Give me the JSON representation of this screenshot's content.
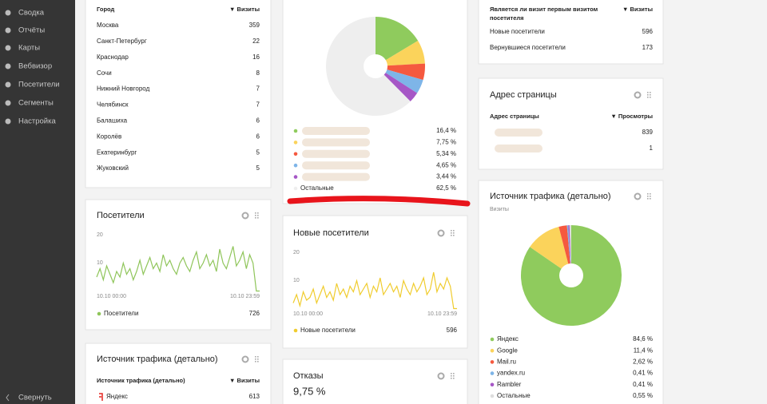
{
  "sidebar": {
    "items": [
      "Сводка",
      "Отчёты",
      "Карты",
      "Вебвизор",
      "Посетители",
      "Сегменты",
      "Настройка"
    ],
    "collapse": "Свернуть"
  },
  "cities": {
    "header": [
      "Город",
      "▼ Визиты"
    ],
    "rows": [
      [
        "Москва",
        359
      ],
      [
        "Санкт-Петербург",
        22
      ],
      [
        "Краснодар",
        16
      ],
      [
        "Сочи",
        8
      ],
      [
        "Нижний Новгород",
        7
      ],
      [
        "Челябинск",
        7
      ],
      [
        "Балашиха",
        6
      ],
      [
        "Королёв",
        6
      ],
      [
        "Екатеринбург",
        5
      ],
      [
        "Жуковский",
        5
      ]
    ]
  },
  "visitors": {
    "title": "Посетители",
    "chart": {
      "type": "line",
      "color": "#8fc55a",
      "ylim": [
        0,
        20
      ],
      "yticks": [
        10,
        20
      ],
      "x_labels": [
        "10.10 00:00",
        "10.10 23:59"
      ],
      "values": [
        6,
        9,
        5,
        10,
        7,
        4,
        8,
        6,
        11,
        7,
        9,
        5,
        8,
        12,
        7,
        10,
        13,
        9,
        11,
        8,
        14,
        10,
        12,
        9,
        7,
        11,
        13,
        10,
        8,
        12,
        15,
        9,
        11,
        14,
        10,
        12,
        8,
        16,
        11,
        9,
        13,
        17,
        10,
        12,
        15,
        9,
        14,
        11,
        1,
        1
      ]
    },
    "legend": {
      "name": "Посетители",
      "value": 726
    }
  },
  "traffic_left": {
    "title": "Источник трафика (детально)",
    "header": [
      "Источник трафика (детально)",
      "▼ Визиты"
    ],
    "rows": [
      [
        "Яндекс",
        613
      ]
    ]
  },
  "pie_top": {
    "chart": {
      "type": "pie",
      "categories": [
        null,
        null,
        null,
        null,
        null,
        "Остальные"
      ],
      "values": [
        16.4,
        7.75,
        5.34,
        4.65,
        3.44,
        62.5
      ],
      "value_labels": [
        "16,4 %",
        "7,75 %",
        "5,34 %",
        "4,65 %",
        "3,44 %",
        "62,5 %"
      ],
      "colors": [
        "#8fcb5d",
        "#fbd35b",
        "#f5593f",
        "#7eb5e8",
        "#a657c6",
        "#eeeeee"
      ]
    }
  },
  "new_visitors": {
    "title": "Новые посетители",
    "chart": {
      "type": "line",
      "color": "#f0cc2e",
      "ylim": [
        0,
        20
      ],
      "yticks": [
        10,
        20
      ],
      "x_labels": [
        "10.10 00:00",
        "10.10 23:59"
      ],
      "values": [
        3,
        6,
        2,
        7,
        4,
        5,
        8,
        3,
        6,
        9,
        5,
        7,
        4,
        10,
        6,
        8,
        5,
        9,
        7,
        11,
        6,
        8,
        10,
        5,
        9,
        7,
        12,
        6,
        8,
        10,
        7,
        9,
        5,
        11,
        8,
        6,
        10,
        7,
        9,
        12,
        6,
        8,
        14,
        7,
        10,
        8,
        12,
        9,
        1,
        1
      ]
    },
    "legend": {
      "name": "Новые посетители",
      "value": 596
    }
  },
  "bounce": {
    "title": "Отказы",
    "value": "9,75 %"
  },
  "first_visit": {
    "header": [
      "Является ли визит первым визитом посетителя",
      "▼ Визиты"
    ],
    "rows": [
      [
        "Новые посетители",
        596
      ],
      [
        "Вернувшиеся посетители",
        173
      ]
    ]
  },
  "address": {
    "title": "Адрес страницы",
    "header": [
      "Адрес страницы",
      "▼ Просмотры"
    ],
    "rows": [
      [
        null,
        839
      ],
      [
        null,
        1
      ]
    ]
  },
  "traffic_right": {
    "title": "Источник трафика (детально)",
    "subtitle": "Визиты",
    "chart": {
      "type": "pie",
      "categories": [
        "Яндекс",
        "Google",
        "Mail.ru",
        "yandex.ru",
        "Rambler",
        "Остальные"
      ],
      "values": [
        84.6,
        11.4,
        2.62,
        0.41,
        0.41,
        0.55
      ],
      "value_labels": [
        "84,6 %",
        "11,4 %",
        "2,62 %",
        "0,41 %",
        "0,41 %",
        "0,55 %"
      ],
      "colors": [
        "#8fcb5d",
        "#fbd35b",
        "#f5593f",
        "#7eb5e8",
        "#a657c6",
        "#dddddd"
      ]
    }
  }
}
